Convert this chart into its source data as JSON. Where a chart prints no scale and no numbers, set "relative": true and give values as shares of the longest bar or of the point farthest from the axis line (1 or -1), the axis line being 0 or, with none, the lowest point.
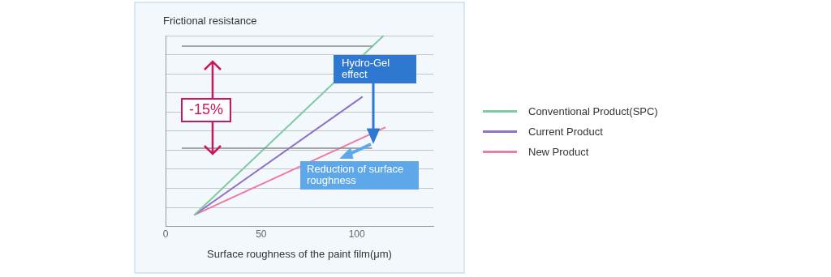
{
  "chart_data": {
    "type": "line",
    "relative": true,
    "ylabel": "Frictional resistance",
    "xlabel": "Surface roughness of the paint film(μm)",
    "xlim": [
      0,
      140
    ],
    "xticks": [
      0,
      50,
      100
    ],
    "grid": "y",
    "legend": "right",
    "marker": "none",
    "series": [
      {
        "name": "Conventional Product(SPC)",
        "color": "#7ecba1",
        "x": [
          15,
          114
        ],
        "values": [
          0.06,
          1
        ]
      },
      {
        "name": "Current Product",
        "color": "#8e72c8",
        "x": [
          15,
          103
        ],
        "values": [
          0.06,
          0.68
        ]
      },
      {
        "name": "New Product",
        "color": "#f07aa6",
        "x": [
          15,
          115
        ],
        "values": [
          0.06,
          0.52
        ]
      }
    ],
    "ref_lines": [
      {
        "axis": "y",
        "value": 0.945,
        "color": "#888888"
      },
      {
        "axis": "y",
        "value": 0.41,
        "color": "#888888"
      }
    ],
    "annotations": [
      "-15%",
      "Hydro-Gel effect",
      "Reduction of surface roughness"
    ]
  }
}
